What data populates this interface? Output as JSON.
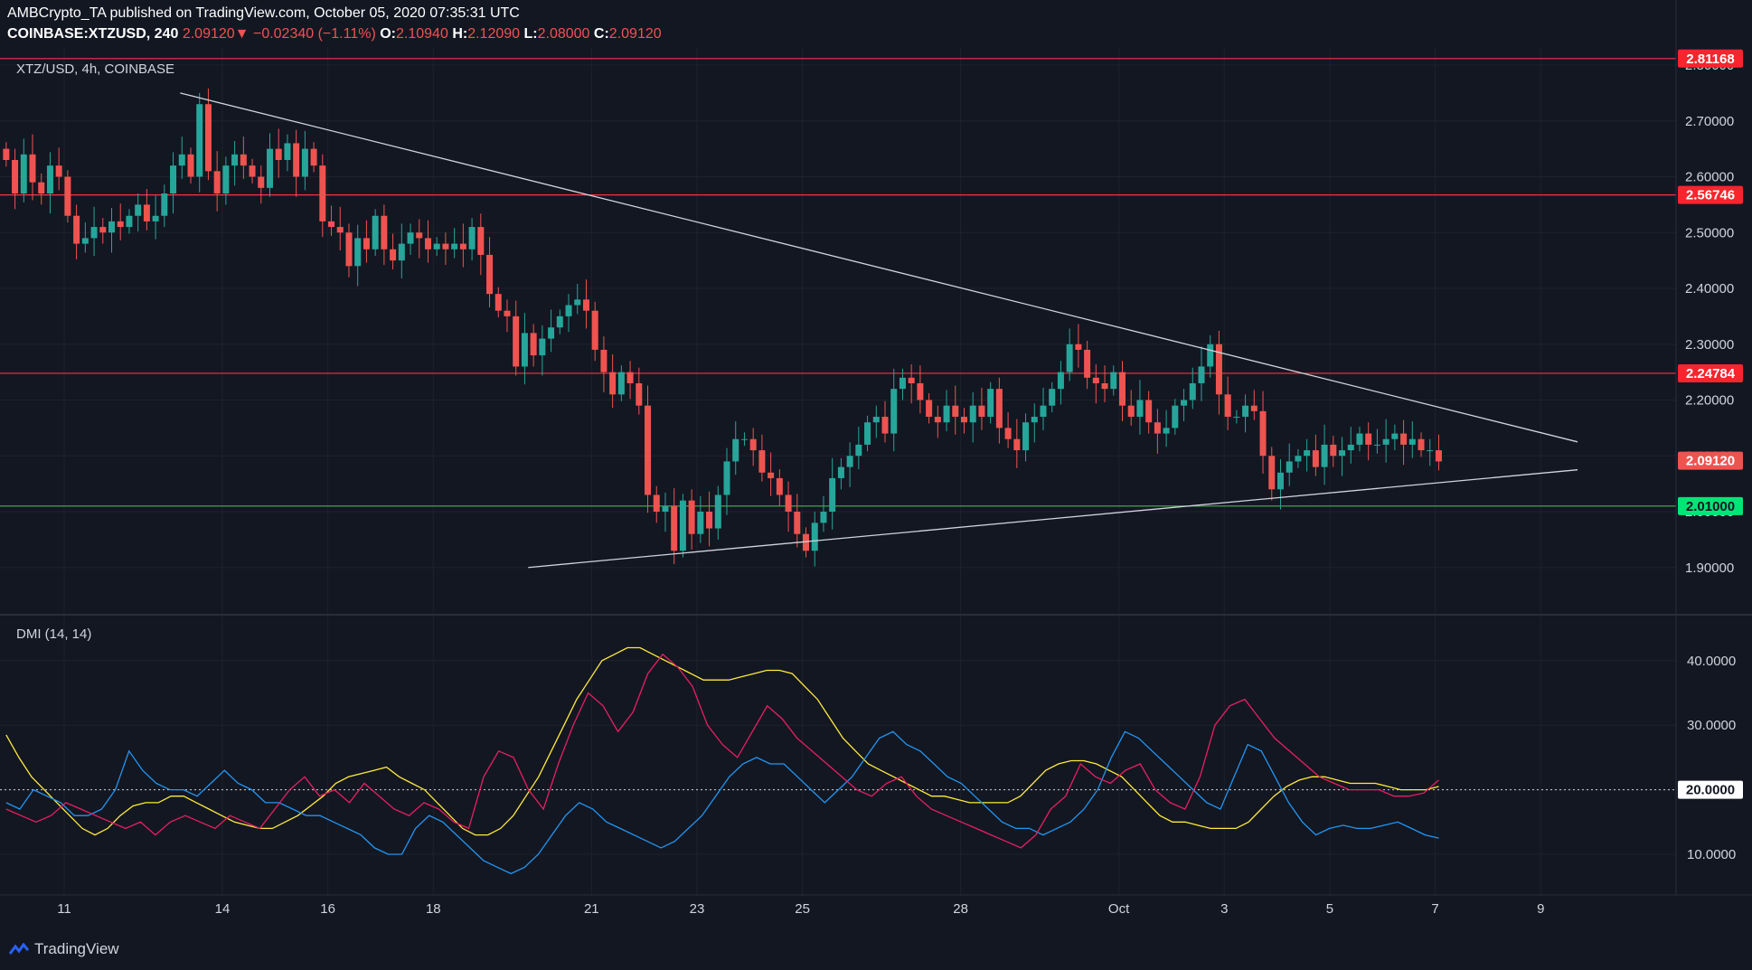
{
  "header": {
    "publisher": "AMBCrypto_TA published on TradingView.com, October 05, 2020 07:35:31 UTC",
    "symbol": "COINBASE:XTZUSD, 240",
    "last": "2.09120",
    "arrow": "▼",
    "change": "−0.02340 (−1.11%)",
    "o_label": "O:",
    "o": "2.10940",
    "h_label": "H:",
    "h": "2.12090",
    "l_label": "L:",
    "l": "2.08000",
    "c_label": "C:",
    "c": "2.09120"
  },
  "main_pane_label": "XTZ/USD, 4h, COINBASE",
  "indicator_label": "DMI (14, 14)",
  "brand": "TradingView",
  "colors": {
    "background": "#131722",
    "up": "#26a69a",
    "down": "#ef5350",
    "resistance": "#f23645",
    "support": "#4caf50",
    "adx": "#ffeb3b",
    "plus_di": "#2196f3",
    "minus_di": "#e91e63",
    "trendline": "#d1d4dc"
  },
  "chart_data": [
    {
      "type": "candlestick",
      "title": "XTZ/USD, 4h, COINBASE",
      "x_axis_ticks": [
        "11",
        "14",
        "16",
        "18",
        "21",
        "23",
        "25",
        "28",
        "Oct",
        "3",
        "5",
        "7",
        "9"
      ],
      "y_axis_ticks": [
        "1.90000",
        "2.00000",
        "2.10000",
        "2.20000",
        "2.30000",
        "2.40000",
        "2.50000",
        "2.60000",
        "2.70000",
        "2.80000"
      ],
      "ylim": [
        1.83,
        2.83
      ],
      "x_range_days": [
        9.5,
        11.0
      ],
      "horizontal_levels": [
        {
          "value": 2.81168,
          "label": "2.81168",
          "color": "#f23645"
        },
        {
          "value": 2.56746,
          "label": "2.56746",
          "color": "#f23645"
        },
        {
          "value": 2.24784,
          "label": "2.24784",
          "color": "#f23645"
        },
        {
          "value": 2.01,
          "label": "2.01000",
          "color": "#4caf50"
        }
      ],
      "last_price": {
        "value": 2.0912,
        "label": "2.09120"
      },
      "trendlines": [
        {
          "name": "descending",
          "from": {
            "day": 13.2,
            "price": 2.75
          },
          "to": {
            "day": 39.7,
            "price": 2.125
          }
        },
        {
          "name": "ascending",
          "from": {
            "day": 19.8,
            "price": 1.9
          },
          "to": {
            "day": 39.7,
            "price": 2.075
          }
        }
      ],
      "candles_start_day": 9.9,
      "candle_interval_hours": 4,
      "closes": [
        2.63,
        2.57,
        2.64,
        2.59,
        2.57,
        2.62,
        2.6,
        2.53,
        2.48,
        2.49,
        2.51,
        2.5,
        2.52,
        2.51,
        2.53,
        2.55,
        2.52,
        2.53,
        2.57,
        2.62,
        2.64,
        2.6,
        2.73,
        2.61,
        2.57,
        2.62,
        2.64,
        2.62,
        2.6,
        2.58,
        2.65,
        2.63,
        2.66,
        2.6,
        2.65,
        2.62,
        2.52,
        2.51,
        2.5,
        2.44,
        2.49,
        2.47,
        2.53,
        2.47,
        2.45,
        2.48,
        2.5,
        2.49,
        2.47,
        2.48,
        2.47,
        2.48,
        2.47,
        2.51,
        2.46,
        2.39,
        2.36,
        2.35,
        2.26,
        2.32,
        2.28,
        2.31,
        2.33,
        2.35,
        2.37,
        2.38,
        2.36,
        2.29,
        2.25,
        2.21,
        2.25,
        2.23,
        2.19,
        2.03,
        2.0,
        2.01,
        1.93,
        2.02,
        1.96,
        2.0,
        1.97,
        2.03,
        2.09,
        2.13,
        2.13,
        2.11,
        2.07,
        2.06,
        2.03,
        2.0,
        1.96,
        1.93,
        1.98,
        2.0,
        2.06,
        2.08,
        2.1,
        2.12,
        2.16,
        2.17,
        2.14,
        2.22,
        2.24,
        2.23,
        2.2,
        2.17,
        2.16,
        2.19,
        2.17,
        2.16,
        2.19,
        2.17,
        2.22,
        2.15,
        2.13,
        2.11,
        2.16,
        2.17,
        2.19,
        2.22,
        2.25,
        2.3,
        2.29,
        2.24,
        2.23,
        2.22,
        2.25,
        2.19,
        2.17,
        2.2,
        2.16,
        2.14,
        2.15,
        2.19,
        2.2,
        2.23,
        2.26,
        2.3,
        2.21,
        2.17,
        2.17,
        2.19,
        2.18,
        2.1,
        2.04,
        2.07,
        2.09,
        2.1,
        2.11,
        2.08,
        2.12,
        2.1,
        2.11,
        2.12,
        2.14,
        2.12,
        2.12,
        2.13,
        2.14,
        2.12,
        2.13,
        2.11,
        2.11,
        2.09
      ],
      "highs_lows_approximate": true
    },
    {
      "type": "line",
      "title": "DMI (14, 14)",
      "y_axis_ticks": [
        "10.0000",
        "20.0000",
        "30.0000",
        "40.0000"
      ],
      "ylim": [
        3,
        44
      ],
      "reference_level": {
        "value": 20.0,
        "label": "20.0000"
      },
      "series": [
        {
          "name": "ADX",
          "color": "#ffeb3b",
          "values": [
            28.5,
            25,
            22,
            20,
            18,
            16,
            14,
            13,
            14,
            16,
            17.5,
            18,
            18,
            19,
            19,
            18,
            17,
            16,
            15,
            14.5,
            14,
            14,
            15,
            16,
            17.5,
            19,
            21,
            22,
            22.5,
            23,
            23.5,
            22,
            21,
            20,
            18,
            16,
            14,
            13,
            13,
            14,
            16,
            19,
            22,
            26,
            30,
            34,
            37,
            40,
            41,
            42,
            42,
            41,
            40,
            39,
            38,
            37,
            37,
            37,
            37.5,
            38,
            38.5,
            38.5,
            38,
            36,
            34,
            31,
            28,
            26,
            24,
            23,
            22,
            21,
            20,
            19,
            19,
            18.5,
            18,
            18,
            18,
            18,
            19,
            21,
            23,
            24,
            24.5,
            24.5,
            24,
            23,
            22,
            20,
            18,
            16,
            15,
            15,
            14.5,
            14,
            14,
            14,
            15,
            17,
            19,
            20.5,
            21.5,
            22,
            22,
            21.5,
            21,
            21,
            21,
            20.5,
            20,
            20,
            20,
            20.5
          ]
        },
        {
          "name": "+DI",
          "color": "#2196f3",
          "values": [
            18,
            17,
            20,
            19,
            18,
            16,
            16,
            17,
            20,
            26,
            23,
            21,
            20,
            20,
            19,
            21,
            23,
            21,
            20,
            18,
            18,
            17,
            16,
            16,
            15,
            14,
            13,
            11,
            10,
            10,
            14,
            16,
            15,
            13,
            11,
            9,
            8,
            7,
            8,
            10,
            13,
            16,
            18,
            17,
            15,
            14,
            13,
            12,
            11,
            12,
            14,
            16,
            19,
            22,
            24,
            25,
            24,
            24,
            22,
            20,
            18,
            20,
            22,
            25,
            28,
            29,
            27,
            26,
            24,
            22,
            21,
            19,
            17,
            15,
            14,
            14,
            13,
            14,
            15,
            17,
            20,
            25,
            29,
            28,
            26,
            24,
            22,
            20,
            18,
            17,
            22,
            27,
            26,
            22,
            18,
            15,
            13,
            14,
            14.5,
            14,
            14,
            14.5,
            15,
            14,
            13,
            12.5
          ]
        },
        {
          "name": "-DI",
          "color": "#e91e63",
          "values": [
            17,
            16,
            15,
            16,
            18,
            17,
            16,
            15,
            14,
            15,
            13,
            15,
            16,
            15,
            14,
            16,
            15,
            14,
            17,
            20,
            22,
            19,
            20,
            18,
            21,
            19,
            17,
            16,
            18,
            17,
            15,
            14,
            22,
            26,
            25,
            20,
            17,
            24,
            30,
            35,
            33,
            29,
            32,
            38,
            41,
            39,
            36,
            30,
            27,
            25,
            29,
            33,
            31,
            28,
            26,
            24,
            22,
            20,
            19,
            21,
            22,
            19,
            17,
            16,
            15,
            14,
            13,
            12,
            11,
            13,
            17,
            19,
            24,
            22,
            21,
            23,
            24,
            20,
            18,
            17,
            22,
            30,
            33,
            34,
            31,
            28,
            26,
            24,
            22,
            21,
            20,
            20,
            20,
            19,
            19,
            19.5,
            21.5
          ]
        }
      ]
    }
  ]
}
